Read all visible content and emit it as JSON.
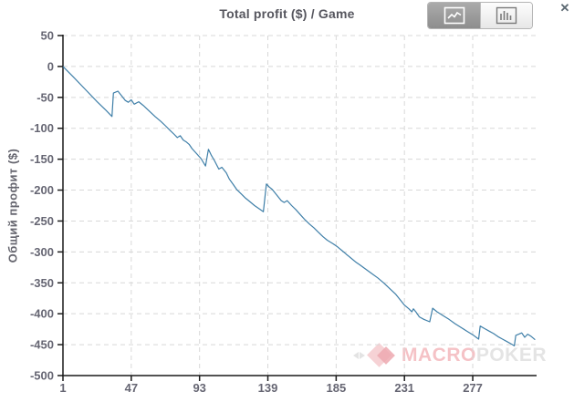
{
  "header": {
    "title": "Total profit ($) / Game",
    "close_label": "✕"
  },
  "toolbar": {
    "line_view_icon": "line-chart-icon",
    "bar_view_icon": "bar-chart-icon",
    "active_view": "line"
  },
  "watermark": {
    "brand_primary": "MACRO",
    "brand_secondary": "POKER",
    "logo_icon": "diamond-logo"
  },
  "colors": {
    "line": "#3f7fa8",
    "grid": "#d8d8d8",
    "axis": "#1a1a1a",
    "tick_label": "#666673",
    "title": "#56565e",
    "watermark_pink": "#f2aeb4",
    "watermark_gray": "#dcdcdc"
  },
  "chart_data": {
    "type": "line",
    "title": "Total profit ($) / Game",
    "xlabel": "",
    "ylabel": "Общий профит ($)",
    "xlim": [
      1,
      320
    ],
    "ylim": [
      -500,
      50
    ],
    "x_ticks": [
      1,
      47,
      93,
      139,
      185,
      231,
      277
    ],
    "y_ticks": [
      50,
      0,
      -50,
      -100,
      -150,
      -200,
      -250,
      -300,
      -350,
      -400,
      -450,
      -500
    ],
    "grid": true,
    "legend": "none",
    "points": [
      [
        1,
        0
      ],
      [
        8,
        -17
      ],
      [
        16,
        -37
      ],
      [
        24,
        -57
      ],
      [
        30,
        -71
      ],
      [
        34,
        -81
      ],
      [
        35,
        -43
      ],
      [
        38,
        -40
      ],
      [
        41,
        -49
      ],
      [
        43,
        -55
      ],
      [
        45,
        -58
      ],
      [
        47,
        -54
      ],
      [
        49,
        -61
      ],
      [
        52,
        -57
      ],
      [
        55,
        -63
      ],
      [
        59,
        -72
      ],
      [
        63,
        -81
      ],
      [
        67,
        -89
      ],
      [
        70,
        -96
      ],
      [
        73,
        -103
      ],
      [
        76,
        -110
      ],
      [
        78,
        -115
      ],
      [
        80,
        -112
      ],
      [
        82,
        -119
      ],
      [
        84,
        -122
      ],
      [
        86,
        -126
      ],
      [
        88,
        -133
      ],
      [
        91,
        -141
      ],
      [
        94,
        -149
      ],
      [
        97,
        -161
      ],
      [
        99,
        -134
      ],
      [
        101,
        -144
      ],
      [
        103,
        -152
      ],
      [
        106,
        -166
      ],
      [
        108,
        -163
      ],
      [
        111,
        -172
      ],
      [
        113,
        -182
      ],
      [
        116,
        -192
      ],
      [
        118,
        -199
      ],
      [
        121,
        -206
      ],
      [
        124,
        -213
      ],
      [
        127,
        -219
      ],
      [
        130,
        -225
      ],
      [
        133,
        -230
      ],
      [
        136,
        -235
      ],
      [
        138,
        -190
      ],
      [
        140,
        -195
      ],
      [
        142,
        -199
      ],
      [
        145,
        -208
      ],
      [
        148,
        -217
      ],
      [
        150,
        -220
      ],
      [
        152,
        -217
      ],
      [
        155,
        -225
      ],
      [
        158,
        -232
      ],
      [
        161,
        -240
      ],
      [
        164,
        -248
      ],
      [
        167,
        -255
      ],
      [
        170,
        -261
      ],
      [
        173,
        -268
      ],
      [
        176,
        -275
      ],
      [
        179,
        -281
      ],
      [
        183,
        -287
      ],
      [
        186,
        -292
      ],
      [
        189,
        -298
      ],
      [
        192,
        -304
      ],
      [
        195,
        -310
      ],
      [
        198,
        -316
      ],
      [
        201,
        -321
      ],
      [
        205,
        -328
      ],
      [
        209,
        -335
      ],
      [
        213,
        -342
      ],
      [
        217,
        -350
      ],
      [
        221,
        -359
      ],
      [
        225,
        -368
      ],
      [
        228,
        -377
      ],
      [
        231,
        -386
      ],
      [
        234,
        -392
      ],
      [
        236,
        -397
      ],
      [
        237,
        -392
      ],
      [
        239,
        -398
      ],
      [
        241,
        -405
      ],
      [
        244,
        -409
      ],
      [
        248,
        -413
      ],
      [
        250,
        -391
      ],
      [
        253,
        -397
      ],
      [
        257,
        -403
      ],
      [
        261,
        -409
      ],
      [
        265,
        -416
      ],
      [
        269,
        -422
      ],
      [
        273,
        -428
      ],
      [
        277,
        -434
      ],
      [
        281,
        -441
      ],
      [
        282,
        -420
      ],
      [
        285,
        -424
      ],
      [
        288,
        -428
      ],
      [
        291,
        -432
      ],
      [
        294,
        -437
      ],
      [
        297,
        -441
      ],
      [
        300,
        -445
      ],
      [
        303,
        -449
      ],
      [
        305,
        -452
      ],
      [
        306,
        -435
      ],
      [
        308,
        -433
      ],
      [
        310,
        -431
      ],
      [
        312,
        -438
      ],
      [
        314,
        -433
      ],
      [
        316,
        -436
      ],
      [
        319,
        -442
      ]
    ]
  }
}
